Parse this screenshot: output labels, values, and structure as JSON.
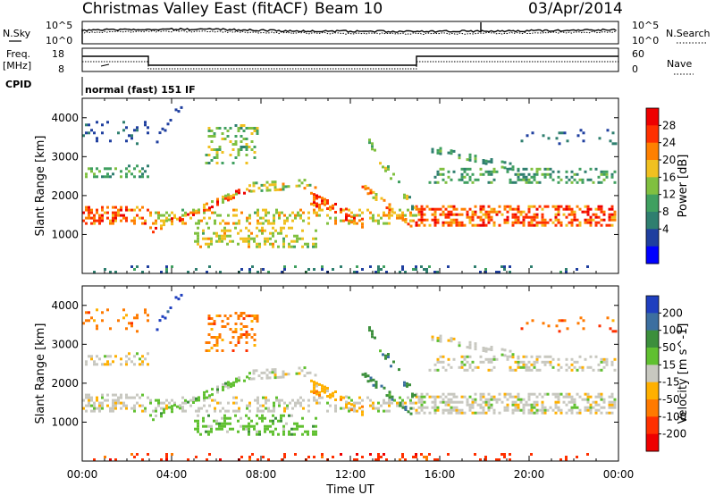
{
  "header": {
    "station": "Christmas Valley East (fitACF)",
    "beam": "Beam 10",
    "date": "03/Apr/2014"
  },
  "status_panel": {
    "nsky_label": "N.Sky",
    "nsearch_label": "N.Search",
    "noise_ticks_left": [
      "10^5",
      "10^0"
    ],
    "noise_ticks_right": [
      "10^5",
      "10^0"
    ],
    "freq_label": "Freq.",
    "freq_unit": "[MHz]",
    "freq_ticks": [
      "18",
      "8"
    ],
    "nave_label": "Nave",
    "nave_ticks": [
      "60",
      "0"
    ],
    "cpid_label": "CPID",
    "cpid_value": "normal (fast) 151 IF"
  },
  "colors": {
    "power": [
      "#0000ff",
      "#1f3f9f",
      "#2f7f6f",
      "#40a060",
      "#80c040",
      "#f0c020",
      "#ff8000",
      "#ff3000",
      "#ee0000"
    ],
    "velocity": [
      "#1f3fbf",
      "#3c6fa0",
      "#3c8f3c",
      "#60c030",
      "#c8c8c0",
      "#ffb000",
      "#ff7a00",
      "#ff3000",
      "#ee0000"
    ]
  },
  "chart_data": [
    {
      "type": "heatmap",
      "title": "",
      "ylabel": "Slant Range [km]",
      "xlabel": "",
      "ylim": [
        0,
        4500
      ],
      "yticks": [
        1000,
        2000,
        3000,
        4000
      ],
      "xlim_hours": [
        0,
        24
      ],
      "colorbar": {
        "label": "Power [dB]",
        "range": [
          0,
          32
        ],
        "ticks": [
          4,
          8,
          12,
          16,
          20,
          24,
          28
        ]
      }
    },
    {
      "type": "heatmap",
      "title": "",
      "ylabel": "Slant Range [km]",
      "xlabel": "Time UT",
      "ylim": [
        0,
        4500
      ],
      "yticks": [
        1000,
        2000,
        3000,
        4000
      ],
      "x_tick_labels": [
        "00:00",
        "04:00",
        "08:00",
        "12:00",
        "16:00",
        "20:00",
        "00:00"
      ],
      "colorbar": {
        "label": "Velocity [m s^-1]",
        "range": [
          -250,
          250
        ],
        "ticks": [
          200,
          100,
          50,
          15,
          -15,
          -50,
          -100,
          -200
        ]
      }
    }
  ]
}
